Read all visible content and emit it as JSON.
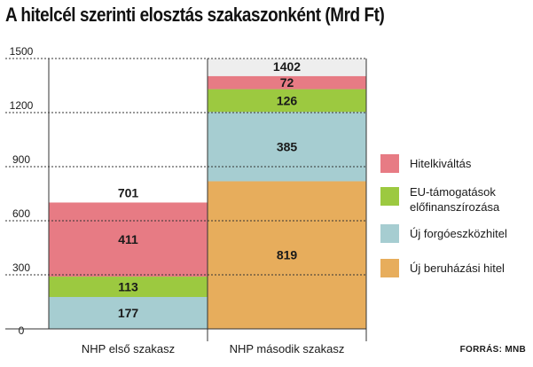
{
  "chart_data": {
    "type": "bar",
    "stacked": true,
    "title": "A hitelcél szerinti elosztás szakaszonként (Mrd Ft)",
    "categories": [
      "NHP első szakasz",
      "NHP második szakasz"
    ],
    "series": [
      {
        "name": "Új beruházási hitel",
        "values": [
          0,
          819
        ],
        "color": "#e7ad5c"
      },
      {
        "name": "Új forgóeszközhitel",
        "values": [
          177,
          385
        ],
        "color": "#a6cdd1"
      },
      {
        "name": "EU-támogatások előfinanszírozása",
        "values": [
          113,
          126
        ],
        "color": "#9cc940"
      },
      {
        "name": "Hitelkiváltás",
        "values": [
          411,
          72
        ],
        "color": "#e77b84"
      }
    ],
    "totals": [
      701,
      1402
    ],
    "y_ticks": [
      0,
      300,
      600,
      900,
      1200,
      1500
    ],
    "ylim": [
      0,
      1500
    ],
    "legend_position": "right",
    "source": "FORRÁS: MNB"
  },
  "legend": [
    {
      "label": "Hitelkiváltás",
      "color": "#e77b84"
    },
    {
      "label": "EU-támogatások előfinanszírozása",
      "color": "#9cc940"
    },
    {
      "label": "Új forgóeszközhitel",
      "color": "#a6cdd1"
    },
    {
      "label": "Új beruházási hitel",
      "color": "#e7ad5c"
    }
  ]
}
